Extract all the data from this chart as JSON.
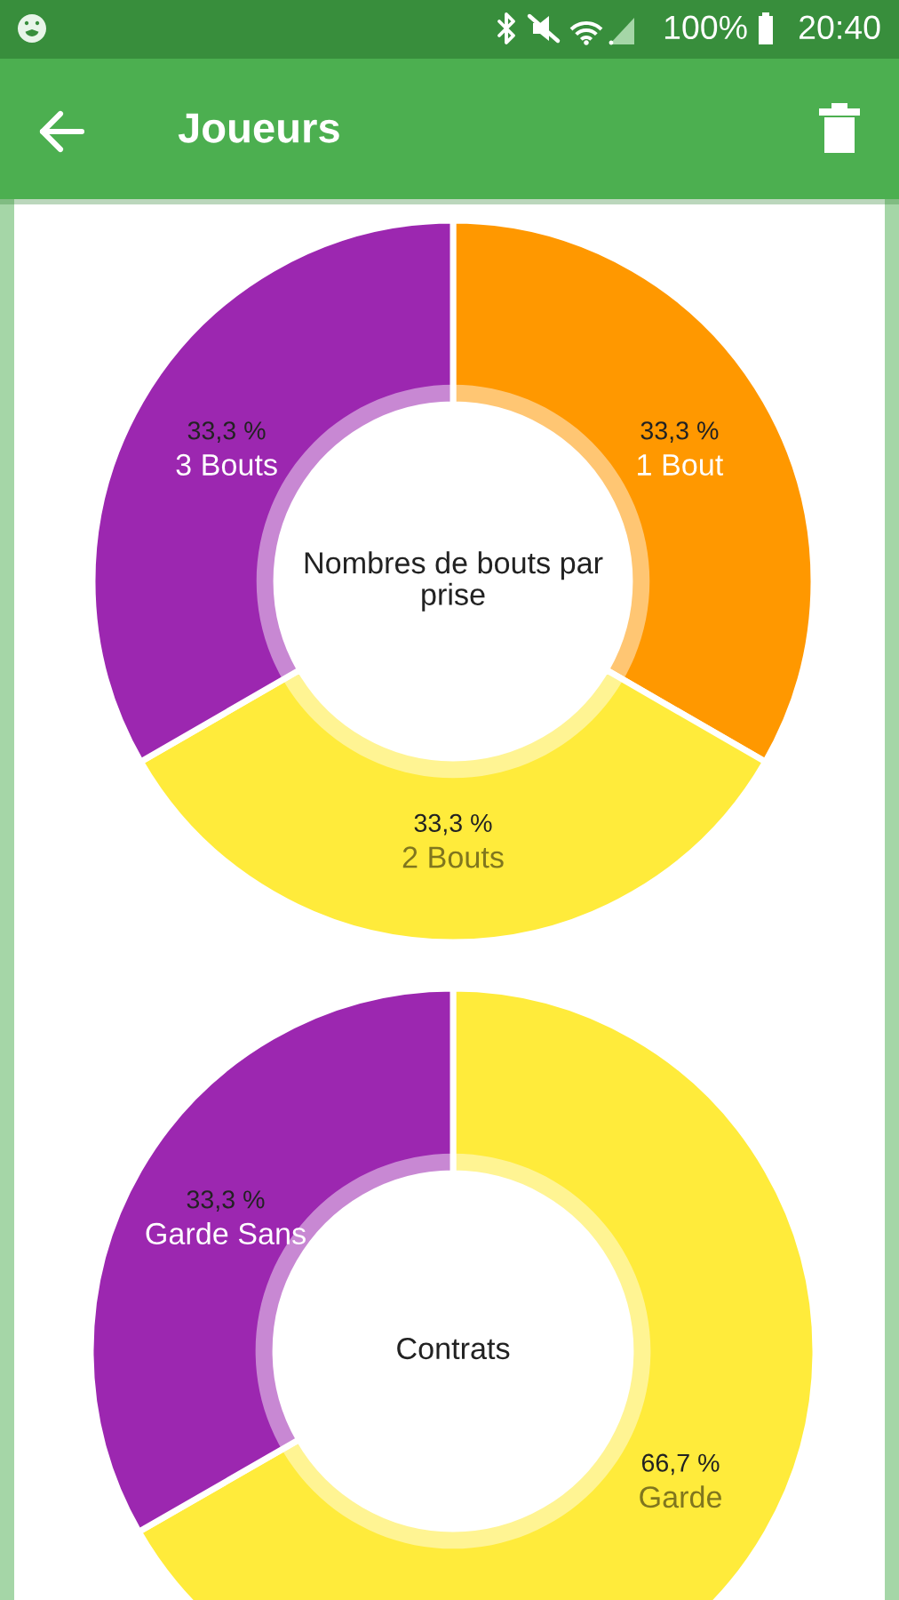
{
  "chart_data": [
    {
      "type": "donut",
      "title": "Nombres de bouts par prise",
      "categories": [
        "1 Bout",
        "2 Bouts",
        "3 Bouts"
      ],
      "values": [
        33.3,
        33.3,
        33.3
      ],
      "colors": [
        "#ff9800",
        "#ffeb3b",
        "#9c27b0"
      ],
      "value_labels": [
        "33,3 %",
        "33,3 %",
        "33,3 %"
      ],
      "annotations": [
        "Joueurs",
        "100%",
        "20:40"
      ]
    },
    {
      "type": "donut",
      "title": "Contrats",
      "categories": [
        "Garde",
        "Garde Sans"
      ],
      "values": [
        66.7,
        33.3
      ],
      "colors": [
        "#ffeb3b",
        "#9c27b0"
      ],
      "value_labels": [
        "66,7 %",
        "33,3 %"
      ]
    }
  ]
}
